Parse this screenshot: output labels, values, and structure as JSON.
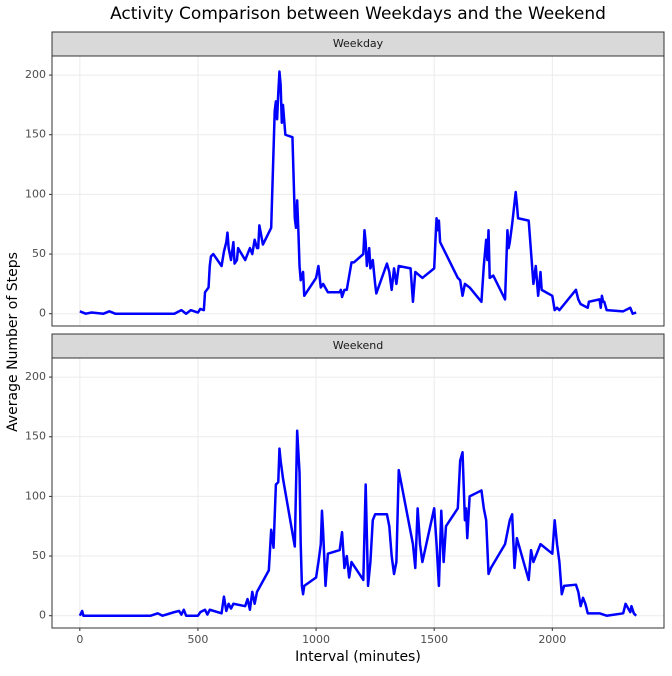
{
  "title": "Activity Comparison between Weekdays and the Weekend",
  "x_label": "Interval (minutes)",
  "y_label": "Average Number of Steps",
  "chart_data": [
    {
      "type": "line",
      "title": "Weekday",
      "x": [
        0,
        25,
        50,
        100,
        125,
        150,
        300,
        400,
        430,
        450,
        470,
        500,
        510,
        525,
        530,
        545,
        550,
        555,
        565,
        600,
        610,
        620,
        625,
        630,
        640,
        650,
        655,
        665,
        670,
        700,
        720,
        730,
        740,
        750,
        755,
        760,
        775,
        800,
        810,
        825,
        830,
        835,
        840,
        845,
        850,
        855,
        860,
        870,
        900,
        910,
        915,
        920,
        925,
        930,
        935,
        945,
        950,
        1000,
        1010,
        1020,
        1030,
        1050,
        1100,
        1105,
        1110,
        1120,
        1130,
        1150,
        1160,
        1200,
        1205,
        1210,
        1215,
        1225,
        1230,
        1240,
        1250,
        1255,
        1300,
        1310,
        1320,
        1330,
        1340,
        1350,
        1400,
        1410,
        1420,
        1450,
        1500,
        1505,
        1510,
        1515,
        1520,
        1525,
        1600,
        1610,
        1620,
        1630,
        1650,
        1700,
        1710,
        1720,
        1725,
        1730,
        1735,
        1750,
        1800,
        1810,
        1815,
        1820,
        1830,
        1845,
        1850,
        1855,
        1900,
        1920,
        1930,
        1940,
        1950,
        1955,
        2000,
        2010,
        2020,
        2030,
        2100,
        2110,
        2120,
        2150,
        2155,
        2200,
        2205,
        2210,
        2215,
        2220,
        2230,
        2300,
        2330,
        2340,
        2355
      ],
      "series": [
        {
          "color": "#0000ff",
          "values": [
            2,
            0,
            1,
            0,
            2,
            0,
            0,
            0,
            3,
            0,
            3,
            1,
            4,
            3,
            18,
            22,
            40,
            48,
            50,
            40,
            52,
            60,
            68,
            55,
            45,
            60,
            42,
            45,
            55,
            45,
            55,
            50,
            62,
            55,
            55,
            74,
            58,
            68,
            72,
            170,
            178,
            163,
            185,
            203,
            192,
            160,
            175,
            150,
            148,
            80,
            72,
            95,
            70,
            40,
            28,
            35,
            15,
            30,
            40,
            22,
            25,
            18,
            18,
            20,
            14,
            20,
            20,
            43,
            43,
            50,
            70,
            60,
            40,
            55,
            38,
            45,
            25,
            17,
            42,
            35,
            20,
            38,
            25,
            40,
            38,
            10,
            35,
            30,
            38,
            60,
            80,
            70,
            78,
            60,
            30,
            28,
            15,
            25,
            22,
            10,
            40,
            62,
            45,
            70,
            30,
            32,
            12,
            70,
            55,
            60,
            75,
            102,
            92,
            80,
            78,
            25,
            40,
            15,
            35,
            20,
            15,
            3,
            5,
            3,
            20,
            12,
            8,
            5,
            10,
            12,
            5,
            15,
            10,
            10,
            3,
            2,
            5,
            0,
            1
          ]
        }
      ],
      "xlim": [
        -117.75,
        2472.75
      ],
      "ylim": [
        -10.3,
        216
      ],
      "xticks": [
        0,
        500,
        1000,
        1500,
        2000
      ],
      "yticks": [
        0,
        50,
        100,
        150,
        200
      ],
      "grid": true
    },
    {
      "type": "line",
      "title": "Weekend",
      "x": [
        0,
        10,
        15,
        100,
        200,
        300,
        330,
        350,
        400,
        420,
        430,
        440,
        450,
        500,
        510,
        530,
        540,
        550,
        600,
        610,
        620,
        630,
        640,
        650,
        700,
        710,
        720,
        730,
        740,
        750,
        800,
        810,
        820,
        830,
        840,
        845,
        850,
        860,
        910,
        920,
        930,
        935,
        940,
        945,
        950,
        1000,
        1010,
        1020,
        1025,
        1030,
        1040,
        1050,
        1100,
        1110,
        1120,
        1130,
        1140,
        1150,
        1200,
        1210,
        1220,
        1230,
        1240,
        1250,
        1300,
        1310,
        1320,
        1330,
        1340,
        1350,
        1410,
        1420,
        1430,
        1440,
        1450,
        1500,
        1510,
        1520,
        1530,
        1540,
        1550,
        1600,
        1605,
        1610,
        1620,
        1630,
        1635,
        1640,
        1650,
        1700,
        1710,
        1720,
        1730,
        1740,
        1800,
        1820,
        1830,
        1840,
        1850,
        1900,
        1910,
        1920,
        1950,
        2000,
        2010,
        2020,
        2030,
        2040,
        2050,
        2100,
        2110,
        2120,
        2130,
        2140,
        2150,
        2200,
        2230,
        2300,
        2310,
        2330,
        2335,
        2345,
        2355
      ],
      "series": [
        {
          "color": "#0000ff",
          "values": [
            0,
            4,
            0,
            0,
            0,
            0,
            2,
            0,
            3,
            4,
            1,
            5,
            0,
            0,
            3,
            5,
            1,
            5,
            2,
            16,
            4,
            10,
            6,
            10,
            8,
            14,
            5,
            20,
            10,
            20,
            38,
            72,
            57,
            110,
            112,
            140,
            130,
            115,
            58,
            155,
            120,
            60,
            25,
            18,
            25,
            32,
            45,
            60,
            88,
            70,
            25,
            52,
            55,
            70,
            40,
            50,
            32,
            45,
            30,
            110,
            25,
            45,
            80,
            85,
            85,
            75,
            50,
            35,
            45,
            122,
            60,
            40,
            90,
            60,
            45,
            90,
            60,
            25,
            88,
            45,
            75,
            90,
            110,
            130,
            137,
            80,
            90,
            65,
            100,
            105,
            90,
            80,
            35,
            40,
            60,
            80,
            85,
            40,
            65,
            30,
            55,
            45,
            60,
            52,
            80,
            60,
            45,
            18,
            25,
            26,
            20,
            8,
            15,
            10,
            2,
            2,
            0,
            2,
            10,
            3,
            8,
            2,
            0
          ]
        }
      ],
      "xlim": [
        -117.75,
        2472.75
      ],
      "ylim": [
        -10.3,
        216
      ],
      "xticks": [
        0,
        500,
        1000,
        1500,
        2000
      ],
      "yticks": [
        0,
        50,
        100,
        150,
        200
      ],
      "grid": true
    }
  ]
}
